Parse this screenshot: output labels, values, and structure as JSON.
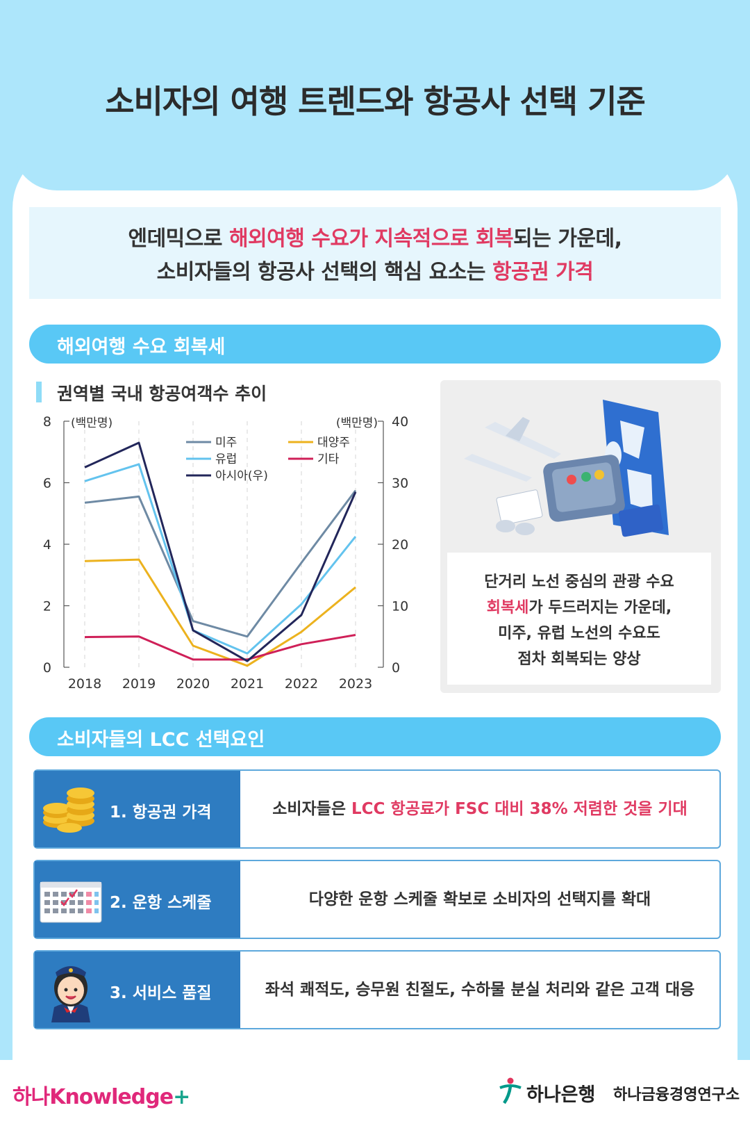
{
  "header": {
    "title": "소비자의 여행 트렌드와 항공사 선택 기준"
  },
  "intro": {
    "line1_pre": "엔데믹으로 ",
    "line1_hl": "해외여행 수요가 지속적으로 회복",
    "line1_post": "되는 가운데,",
    "line2_pre": "소비자들의 항공사 선택의 핵심 요소는 ",
    "line2_hl": "항공권 가격"
  },
  "section1": {
    "title": "해외여행 수요 회복세"
  },
  "chart_title": "권역별 국내 항공여객수 추이",
  "chart_data": {
    "type": "line",
    "title": "권역별 국내 항공여객수 추이",
    "x": [
      "2018",
      "2019",
      "2020",
      "2021",
      "2022",
      "2023"
    ],
    "y_left_unit": "(백만명)",
    "y_right_unit": "(백만명)",
    "y_left_ticks": [
      "0",
      "2",
      "4",
      "6",
      "8"
    ],
    "y_right_ticks": [
      "0",
      "10",
      "20",
      "30",
      "40"
    ],
    "ylim_left": [
      0,
      8
    ],
    "ylim_right": [
      0,
      40
    ],
    "legend": "top-center",
    "grid": "vertical dashed",
    "series": [
      {
        "name": "미주",
        "axis": "left",
        "color": "#6e8aa4",
        "values": [
          5.35,
          5.55,
          1.5,
          1.0,
          3.4,
          5.75
        ]
      },
      {
        "name": "유럽",
        "axis": "left",
        "color": "#63c3ee",
        "values": [
          6.05,
          6.6,
          1.2,
          0.45,
          2.05,
          4.25
        ]
      },
      {
        "name": "대양주",
        "axis": "left",
        "color": "#ecb21e",
        "values": [
          3.45,
          3.5,
          0.7,
          0.05,
          1.15,
          2.6
        ]
      },
      {
        "name": "기타",
        "axis": "left",
        "color": "#cf2058",
        "values": [
          0.98,
          1.0,
          0.25,
          0.25,
          0.75,
          1.05
        ]
      },
      {
        "name": "아시아(우)",
        "axis": "right",
        "color": "#22265a",
        "values": [
          32.5,
          36.5,
          6.0,
          1.0,
          8.5,
          28.5
        ]
      }
    ]
  },
  "card": {
    "line1": "단거리 노선 중심의 관광 수요",
    "line2_hl": "회복세",
    "line2_post": "가 두드러지는 가운데,",
    "line3": "미주, 유럽 노선의 수요도",
    "line4": "점차 회복되는 양상"
  },
  "section2": {
    "title": "소비자들의 LCC 선택요인"
  },
  "factors": [
    {
      "label": "1. 항공권 가격",
      "icon": "coins-icon",
      "desc_pre": "소비자들은  ",
      "desc_hl": "LCC 항공료가 FSC 대비 38% 저렴한 것을 기대"
    },
    {
      "label": "2. 운항 스케줄",
      "icon": "calendar-icon",
      "desc": "다양한 운항 스케줄 확보로 소비자의 선택지를 확대"
    },
    {
      "label": "3. 서비스 품질",
      "icon": "flight-attendant-icon",
      "desc": "좌석 쾌적도, 승무원 친절도, 수하물 분실 처리와 같은 고객 대응"
    }
  ],
  "footer": {
    "brand_left": "하나Knowledge",
    "brand_left_plus": "+",
    "bank": "하나은행",
    "institute": "하나금융경영연구소"
  },
  "colors": {
    "accent": "#e03a62",
    "sky": "#ade6fb",
    "bar": "#59c8f5",
    "factor_blue": "#2e7cc1"
  }
}
